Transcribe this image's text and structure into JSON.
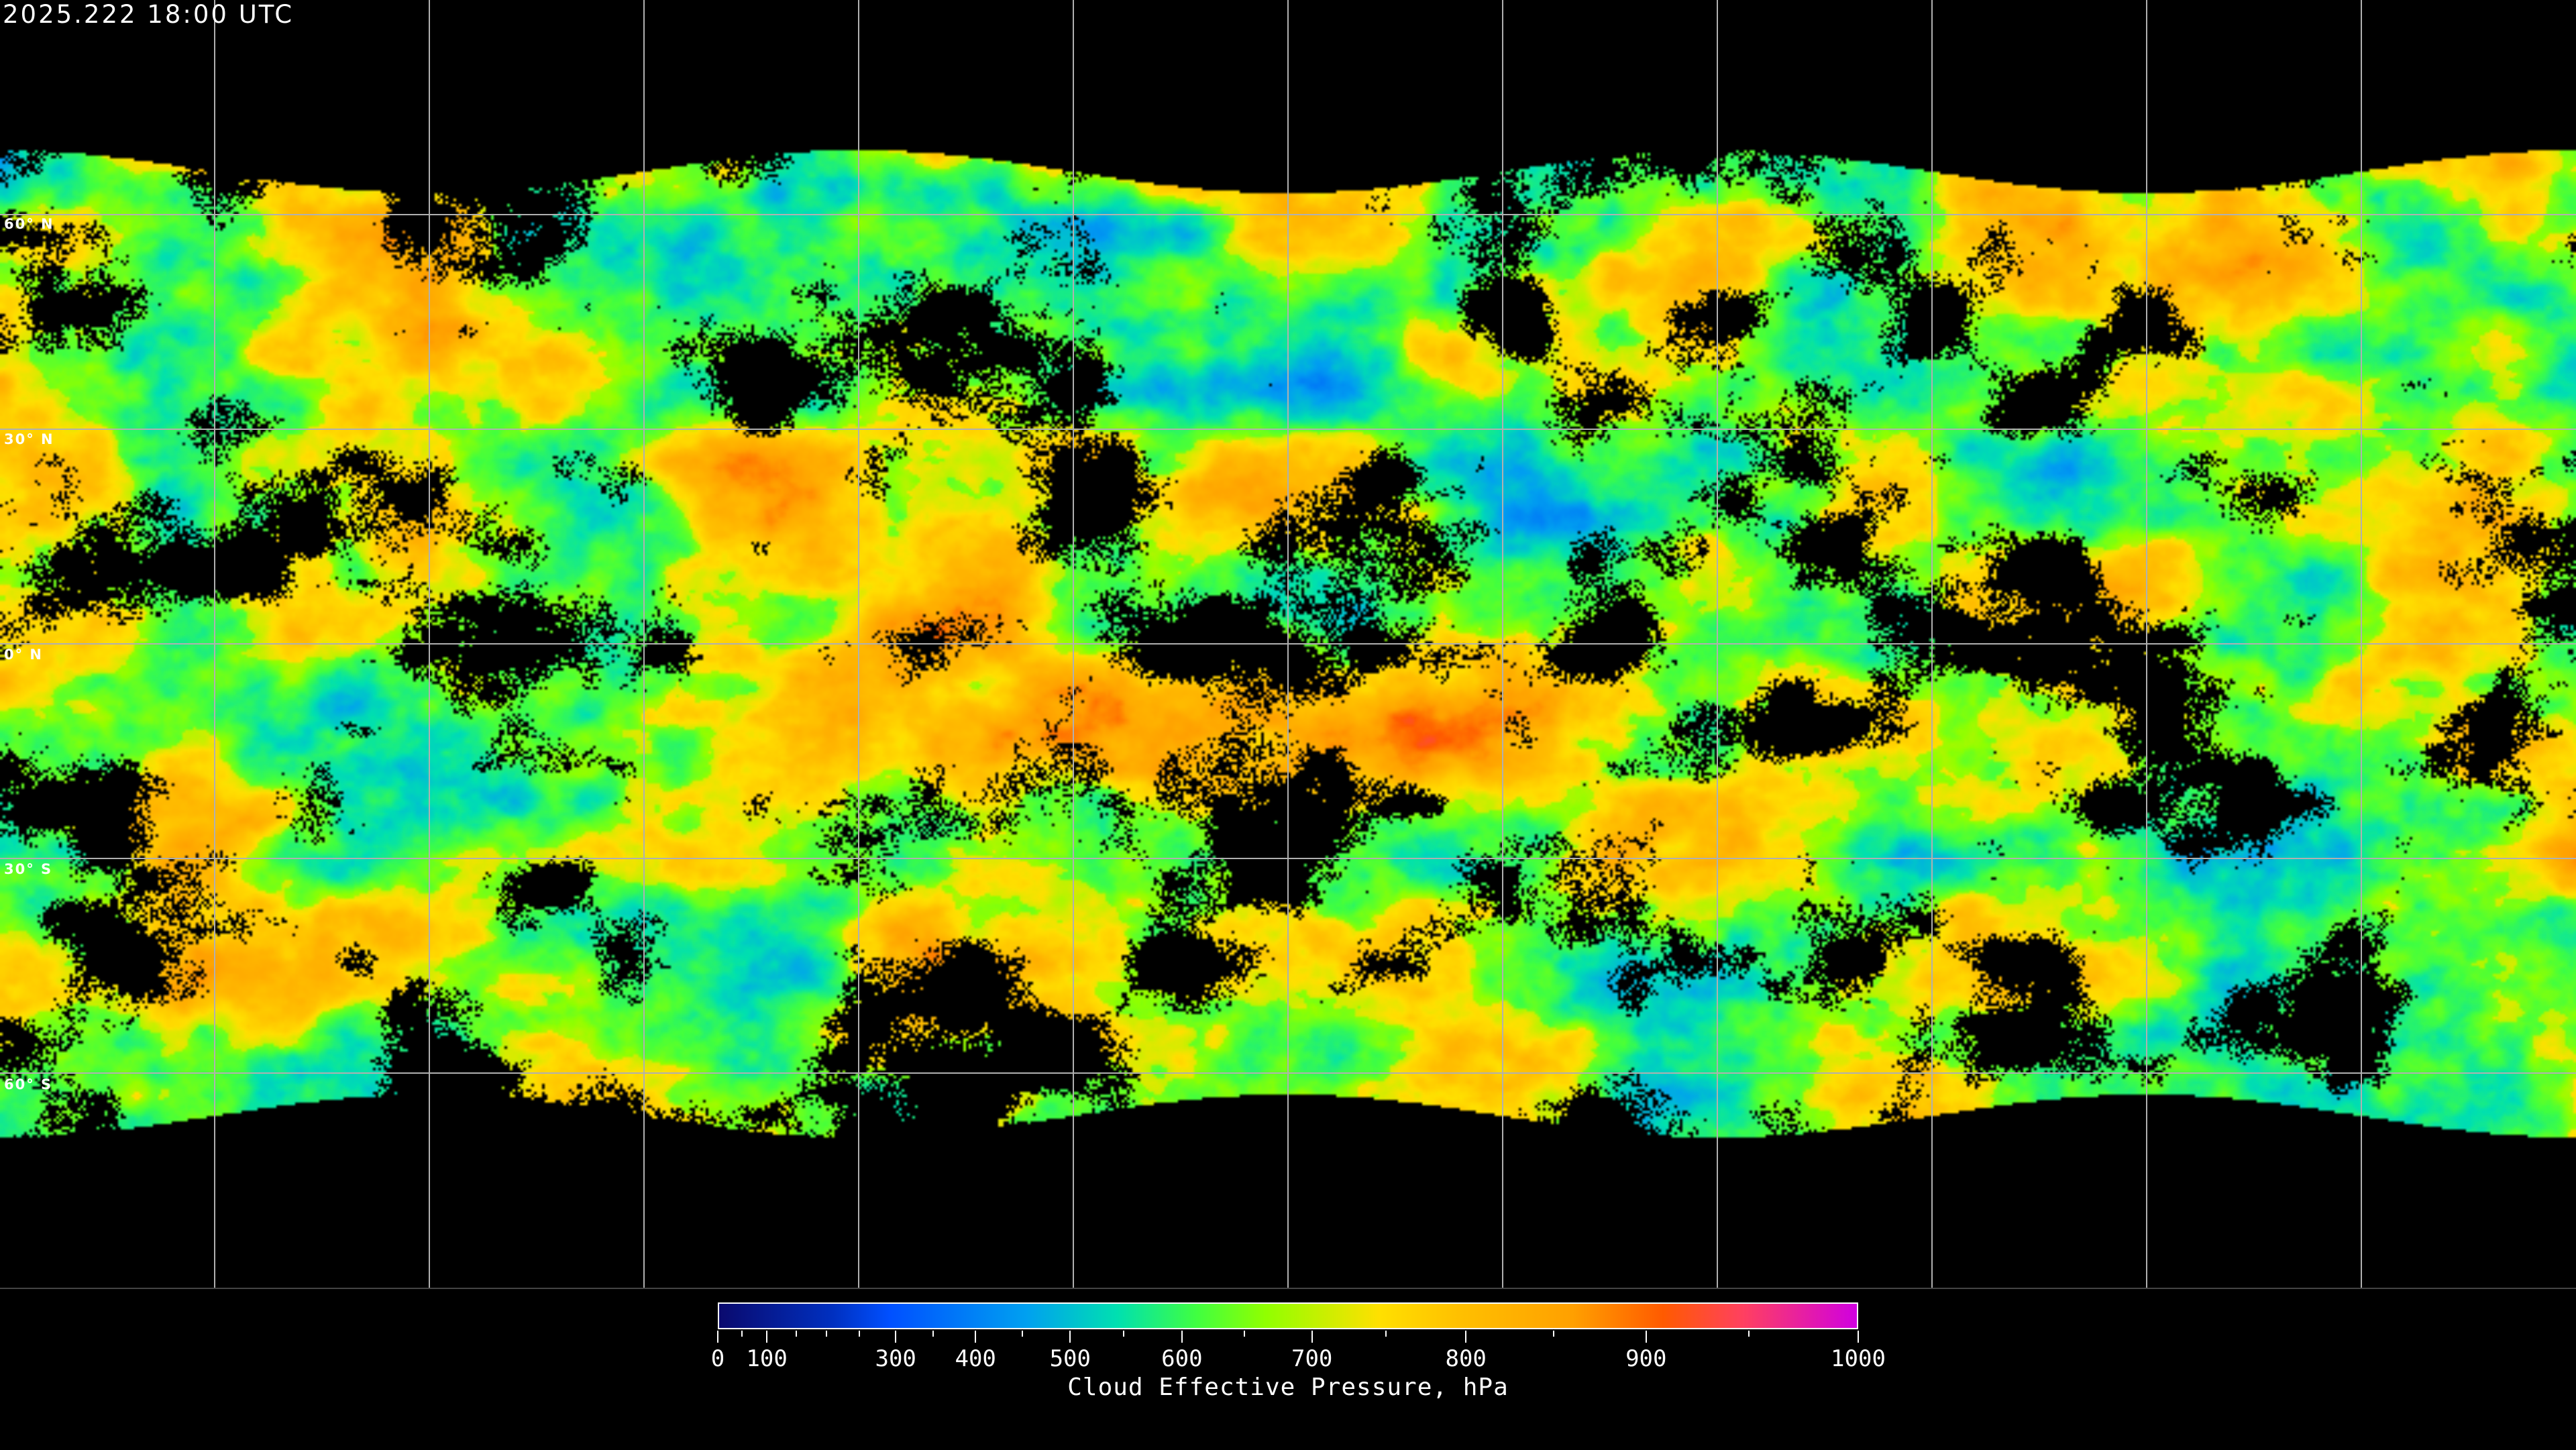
{
  "title": "2025.222 18:00 UTC",
  "latitude_labels": [
    "60° N",
    "30° N",
    "0° N",
    "30° S",
    "60° S"
  ],
  "colorbar": {
    "label": "Cloud Effective Pressure, hPa",
    "tick_labels": [
      "0",
      "100",
      "300",
      "400",
      "500",
      "600",
      "700",
      "800",
      "900",
      "1000"
    ],
    "range": [
      0,
      1000
    ],
    "colors": [
      "#0a0a6e",
      "#0030c0",
      "#0050ff",
      "#00a0f0",
      "#00e0b0",
      "#40ff40",
      "#90ff00",
      "#ffe000",
      "#ffc000",
      "#ffa000",
      "#ff5a00",
      "#ff4060",
      "#d000e0"
    ]
  },
  "map": {
    "projection": "equirectangular",
    "graticule_spacing_deg": 30,
    "no_cloud_color": "#000000",
    "grid_color": "#b0b0b0"
  }
}
